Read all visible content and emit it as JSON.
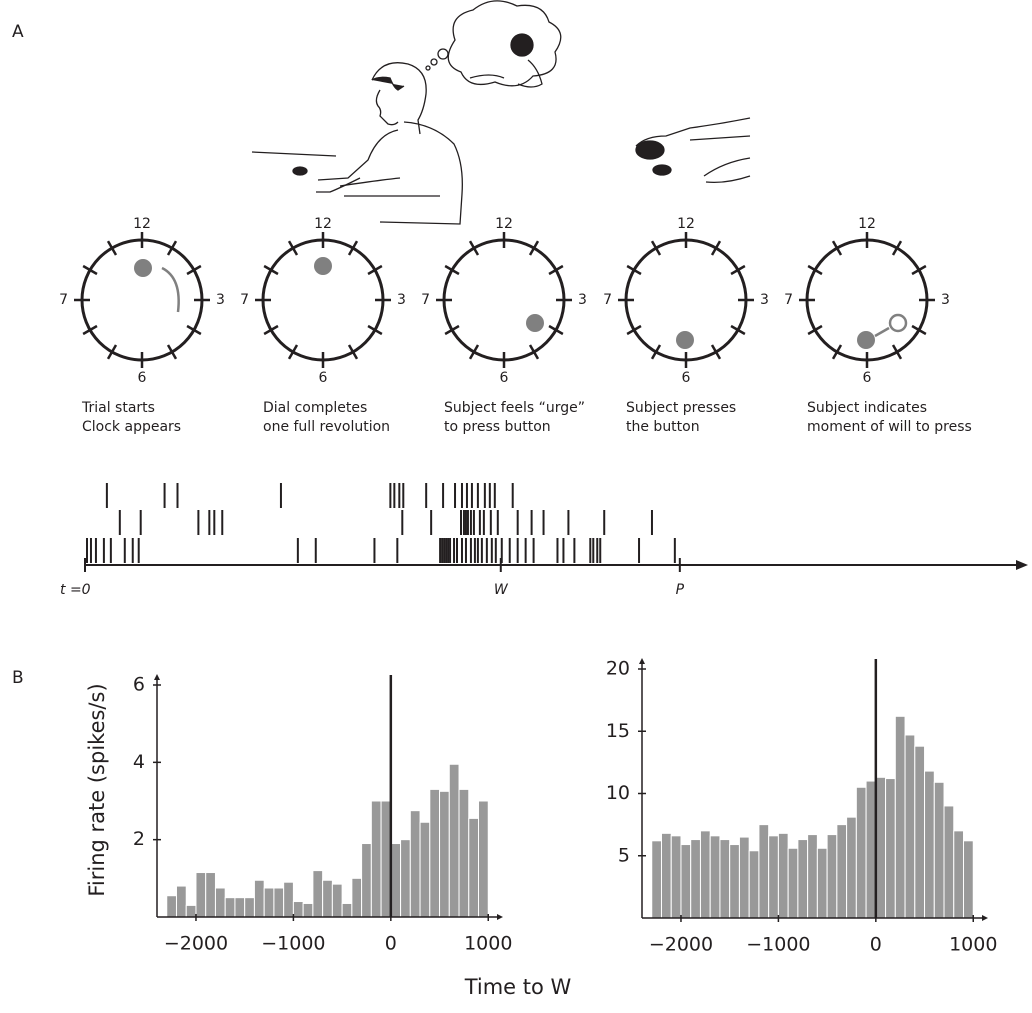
{
  "panels": {
    "a": "A",
    "b": "B"
  },
  "clocks": {
    "labels": {
      "top": "12",
      "right": "3",
      "bottom": "6",
      "left": "7"
    },
    "captions": [
      [
        "Trial starts",
        "Clock appears"
      ],
      [
        "Dial completes",
        "one full revolution"
      ],
      [
        "Subject feels “urge”",
        "to press button"
      ],
      [
        "Subject presses",
        "the button"
      ],
      [
        "Subject indicates",
        "moment of will to press"
      ]
    ]
  },
  "common_xlabel": "Time to W",
  "chart_data": [
    {
      "type": "raster",
      "rows": [
        [
          22,
          80,
          93,
          197,
          307,
          311,
          316,
          320,
          343,
          360,
          372,
          379,
          384,
          389,
          395,
          402,
          407,
          412,
          430
        ],
        [
          35,
          56,
          114,
          125,
          130,
          138,
          319,
          348,
          378,
          381,
          383,
          385,
          388,
          391,
          397,
          401,
          408,
          415,
          435,
          449,
          461,
          486,
          522,
          570
        ],
        [
          2,
          6,
          11,
          19,
          26,
          40,
          48,
          54,
          214,
          232,
          291,
          314,
          357,
          359,
          361,
          363,
          365,
          367,
          371,
          374,
          379,
          383,
          388,
          392,
          395,
          399,
          404,
          409,
          413,
          419,
          427,
          435,
          443,
          451,
          475,
          481,
          492,
          508,
          511,
          515,
          518,
          557,
          593
        ]
      ],
      "xlim": [
        0,
        940
      ],
      "xticks": [
        {
          "value": 0,
          "label": "t =0"
        },
        {
          "value": 418,
          "label": "W"
        },
        {
          "value": 598,
          "label": "P"
        }
      ]
    },
    {
      "type": "histogram",
      "ylabel": "Firing rate (spikes/s)",
      "color": "#999999",
      "bins": [
        -2300,
        -2200,
        -2100,
        -2000,
        -1900,
        -1800,
        -1700,
        -1600,
        -1500,
        -1400,
        -1300,
        -1200,
        -1100,
        -1000,
        -900,
        -800,
        -700,
        -600,
        -500,
        -400,
        -300,
        -200,
        -100,
        0,
        100,
        200,
        300,
        400,
        500,
        600,
        700,
        800,
        900,
        1000
      ],
      "values": [
        0.55,
        0.8,
        0.3,
        1.15,
        1.15,
        0.75,
        0.5,
        0.5,
        0.5,
        0.95,
        0.75,
        0.75,
        0.9,
        0.4,
        0.35,
        1.2,
        0.95,
        0.85,
        0.35,
        1.0,
        1.9,
        3.0,
        3.0,
        1.9,
        2.0,
        2.75,
        2.45,
        3.3,
        3.25,
        3.95,
        3.3,
        2.55,
        3.0
      ],
      "xlim": [
        -2400,
        1100
      ],
      "ylim": [
        0,
        6
      ],
      "xticks": [
        {
          "value": -2000,
          "label": "−2000"
        },
        {
          "value": -1000,
          "label": "−1000"
        },
        0,
        1000
      ],
      "yticks": [
        2,
        4,
        6
      ]
    },
    {
      "type": "histogram",
      "color": "#999999",
      "bins": [
        -2300,
        -2200,
        -2100,
        -2000,
        -1900,
        -1800,
        -1700,
        -1600,
        -1500,
        -1400,
        -1300,
        -1200,
        -1100,
        -1000,
        -900,
        -800,
        -700,
        -600,
        -500,
        -400,
        -300,
        -200,
        -100,
        0,
        100,
        200,
        300,
        400,
        500,
        600,
        700,
        800,
        900,
        1000
      ],
      "values": [
        6.2,
        6.8,
        6.6,
        5.9,
        6.3,
        7.0,
        6.6,
        6.3,
        5.9,
        6.5,
        5.4,
        7.5,
        6.6,
        6.8,
        5.6,
        6.3,
        6.7,
        5.6,
        6.7,
        7.5,
        8.1,
        10.5,
        11.0,
        11.3,
        11.2,
        16.2,
        14.7,
        13.8,
        11.8,
        10.9,
        9.0,
        7.0,
        6.2
      ],
      "xlim": [
        -2400,
        1100
      ],
      "ylim": [
        0,
        20
      ],
      "xticks": [
        {
          "value": -2000,
          "label": "−2000"
        },
        {
          "value": -1000,
          "label": "−1000"
        },
        0,
        1000
      ],
      "yticks": [
        5,
        10,
        15,
        20
      ]
    }
  ]
}
